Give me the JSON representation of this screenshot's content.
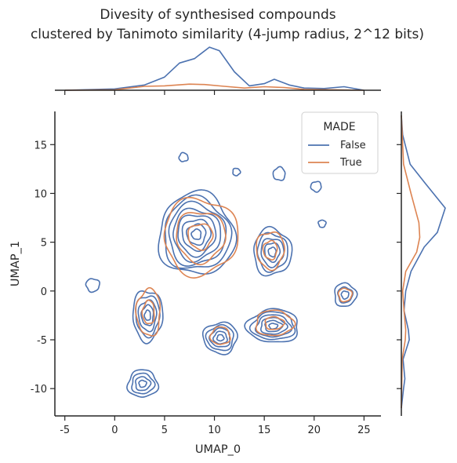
{
  "chart_data": {
    "type": "kde_joint",
    "title_lines": [
      "Divesity of synthesised compounds",
      "clustered by Tanimoto similarity (4-jump radius, 2^12 bits)"
    ],
    "xlabel": "UMAP_0",
    "ylabel": "UMAP_1",
    "xlim": [
      -6,
      26.7
    ],
    "ylim": [
      -12.8,
      18.4
    ],
    "x_ticks": [
      -5,
      0,
      5,
      10,
      15,
      20,
      25
    ],
    "y_ticks": [
      -10,
      -5,
      0,
      5,
      10,
      15
    ],
    "legend": {
      "title": "MADE",
      "placement": "top-right",
      "entries": [
        "False",
        "True"
      ]
    },
    "series": [
      {
        "name": "False",
        "color": "#4c72b0",
        "clusters": [
          {
            "x": 8.2,
            "y": 5.8,
            "sx": 3.8,
            "sy": 4.2,
            "levels": 8
          },
          {
            "x": 15.8,
            "y": 4.0,
            "sx": 1.9,
            "sy": 2.4,
            "levels": 5
          },
          {
            "x": 3.3,
            "y": -2.5,
            "sx": 1.5,
            "sy": 2.6,
            "levels": 5
          },
          {
            "x": 10.6,
            "y": -4.8,
            "sx": 1.7,
            "sy": 1.6,
            "levels": 5
          },
          {
            "x": 15.9,
            "y": -3.6,
            "sx": 2.6,
            "sy": 1.7,
            "levels": 6
          },
          {
            "x": 2.8,
            "y": -9.5,
            "sx": 1.5,
            "sy": 1.4,
            "levels": 4
          },
          {
            "x": 23.1,
            "y": -0.4,
            "sx": 1.1,
            "sy": 1.2,
            "levels": 3
          },
          {
            "x": -2.2,
            "y": 0.6,
            "sx": 0.9,
            "sy": 0.9,
            "levels": 1
          },
          {
            "x": 20.2,
            "y": 10.7,
            "sx": 0.7,
            "sy": 0.7,
            "levels": 1
          },
          {
            "x": 16.5,
            "y": 12.0,
            "sx": 0.8,
            "sy": 0.9,
            "levels": 1
          },
          {
            "x": 6.9,
            "y": 13.7,
            "sx": 0.6,
            "sy": 0.6,
            "levels": 1
          },
          {
            "x": 12.2,
            "y": 12.2,
            "sx": 0.5,
            "sy": 0.5,
            "levels": 1
          },
          {
            "x": 20.8,
            "y": 6.9,
            "sx": 0.5,
            "sy": 0.5,
            "levels": 1
          }
        ]
      },
      {
        "name": "True",
        "color": "#dd8452",
        "clusters": [
          {
            "x": 8.6,
            "y": 5.6,
            "sx": 3.7,
            "sy": 3.9,
            "levels": 3
          },
          {
            "x": 15.6,
            "y": 4.2,
            "sx": 1.4,
            "sy": 1.9,
            "levels": 2
          },
          {
            "x": 3.4,
            "y": -2.2,
            "sx": 1.2,
            "sy": 2.4,
            "levels": 2
          },
          {
            "x": 10.6,
            "y": -4.6,
            "sx": 1.3,
            "sy": 1.2,
            "levels": 1
          },
          {
            "x": 16.0,
            "y": -3.3,
            "sx": 1.9,
            "sy": 1.3,
            "levels": 2
          },
          {
            "x": 23.1,
            "y": -0.4,
            "sx": 0.9,
            "sy": 0.9,
            "levels": 1
          }
        ]
      }
    ],
    "marginal_x": {
      "False": [
        [
          -5,
          0
        ],
        [
          0,
          0.03
        ],
        [
          3,
          0.12
        ],
        [
          5,
          0.3
        ],
        [
          6.5,
          0.62
        ],
        [
          8,
          0.72
        ],
        [
          9.5,
          0.98
        ],
        [
          10.5,
          0.9
        ],
        [
          12,
          0.42
        ],
        [
          13.5,
          0.1
        ],
        [
          15,
          0.15
        ],
        [
          16,
          0.25
        ],
        [
          17.5,
          0.12
        ],
        [
          19,
          0.05
        ],
        [
          21,
          0.04
        ],
        [
          23,
          0.08
        ],
        [
          25,
          0
        ]
      ],
      "True": [
        [
          -5,
          0
        ],
        [
          0,
          0.01
        ],
        [
          3,
          0.09
        ],
        [
          5,
          0.1
        ],
        [
          7.5,
          0.14
        ],
        [
          9,
          0.13
        ],
        [
          11,
          0.09
        ],
        [
          13,
          0.05
        ],
        [
          15,
          0.08
        ],
        [
          17,
          0.06
        ],
        [
          19,
          0.02
        ],
        [
          22,
          0.01
        ],
        [
          25,
          0
        ]
      ]
    },
    "marginal_y": {
      "False": [
        [
          18,
          0
        ],
        [
          16,
          0.03
        ],
        [
          13,
          0.2
        ],
        [
          11,
          0.55
        ],
        [
          8.5,
          1.0
        ],
        [
          6,
          0.82
        ],
        [
          4.5,
          0.52
        ],
        [
          2,
          0.22
        ],
        [
          0,
          0.1
        ],
        [
          -2,
          0.06
        ],
        [
          -4,
          0.16
        ],
        [
          -5,
          0.18
        ],
        [
          -7,
          0.04
        ],
        [
          -9,
          0.08
        ],
        [
          -10,
          0.05
        ],
        [
          -12,
          0
        ]
      ],
      "True": [
        [
          18,
          0
        ],
        [
          13,
          0.05
        ],
        [
          10,
          0.22
        ],
        [
          7,
          0.4
        ],
        [
          5.5,
          0.42
        ],
        [
          4,
          0.35
        ],
        [
          2,
          0.1
        ],
        [
          0,
          0.03
        ],
        [
          -2,
          0.06
        ],
        [
          -4,
          0.1
        ],
        [
          -5,
          0.09
        ],
        [
          -7,
          0.02
        ],
        [
          -12,
          0
        ]
      ]
    }
  }
}
